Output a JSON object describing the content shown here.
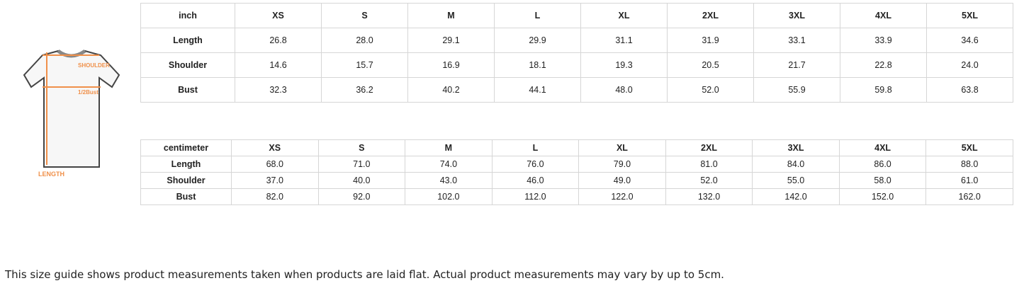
{
  "diagram": {
    "labels": {
      "shoulder": "SHOULDER",
      "bust": "1/2Bust",
      "length": "LENGTH"
    },
    "accent": "#f0904a"
  },
  "inch": {
    "unit": "inch",
    "sizes": [
      "XS",
      "S",
      "M",
      "L",
      "XL",
      "2XL",
      "3XL",
      "4XL",
      "5XL"
    ],
    "rows": [
      {
        "label": "Length",
        "values": [
          "26.8",
          "28.0",
          "29.1",
          "29.9",
          "31.1",
          "31.9",
          "33.1",
          "33.9",
          "34.6"
        ]
      },
      {
        "label": "Shoulder",
        "values": [
          "14.6",
          "15.7",
          "16.9",
          "18.1",
          "19.3",
          "20.5",
          "21.7",
          "22.8",
          "24.0"
        ]
      },
      {
        "label": "Bust",
        "values": [
          "32.3",
          "36.2",
          "40.2",
          "44.1",
          "48.0",
          "52.0",
          "55.9",
          "59.8",
          "63.8"
        ]
      }
    ]
  },
  "cm": {
    "unit": "centimeter",
    "sizes": [
      "XS",
      "S",
      "M",
      "L",
      "XL",
      "2XL",
      "3XL",
      "4XL",
      "5XL"
    ],
    "rows": [
      {
        "label": "Length",
        "values": [
          "68.0",
          "71.0",
          "74.0",
          "76.0",
          "79.0",
          "81.0",
          "84.0",
          "86.0",
          "88.0"
        ]
      },
      {
        "label": "Shoulder",
        "values": [
          "37.0",
          "40.0",
          "43.0",
          "46.0",
          "49.0",
          "52.0",
          "55.0",
          "58.0",
          "61.0"
        ]
      },
      {
        "label": "Bust",
        "values": [
          "82.0",
          "92.0",
          "102.0",
          "112.0",
          "122.0",
          "132.0",
          "142.0",
          "152.0",
          "162.0"
        ]
      }
    ]
  },
  "note": "This size guide shows product measurements taken when products are laid flat. Actual product measurements may vary by up to 5cm."
}
